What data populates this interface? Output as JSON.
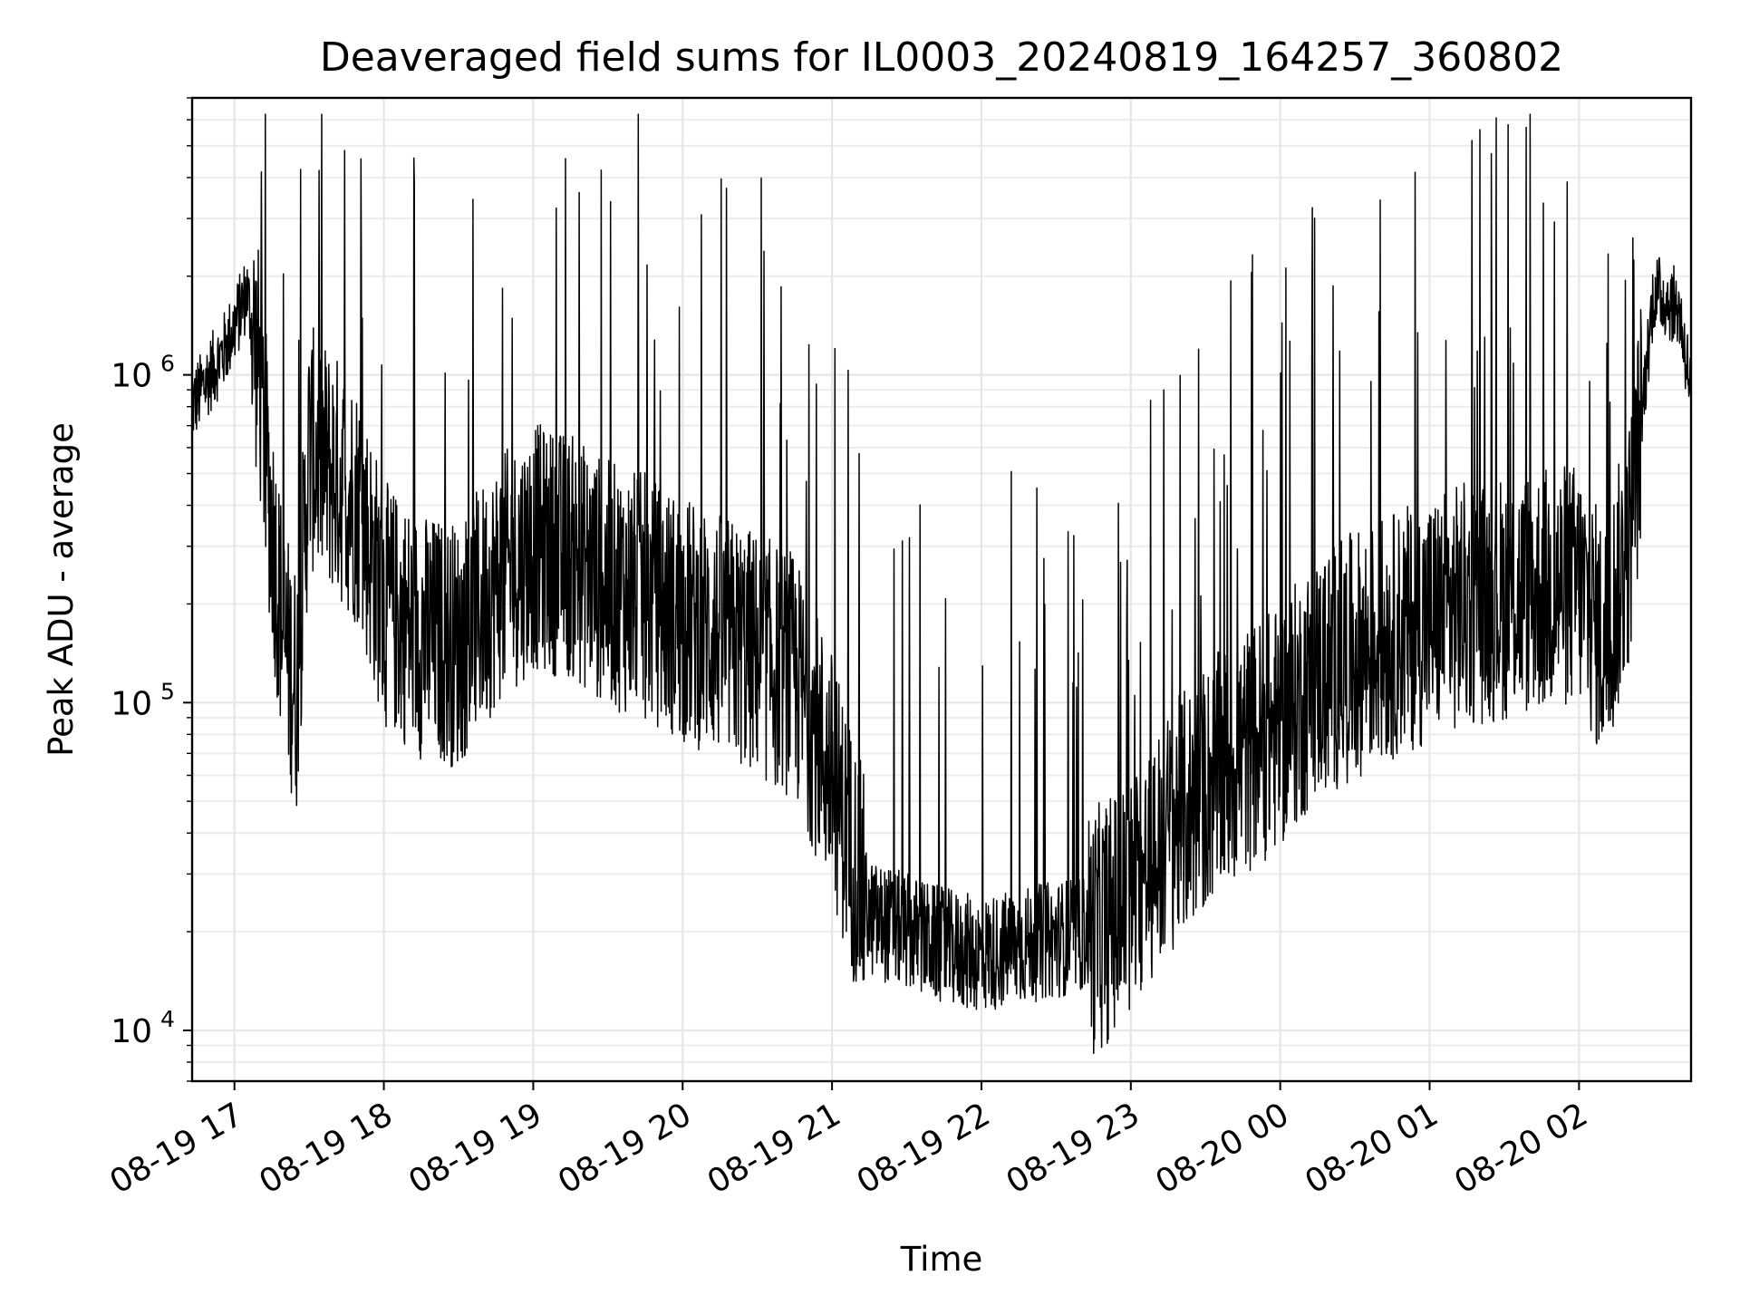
{
  "chart_data": {
    "type": "line",
    "title": "Deaveraged field sums for IL0003_20240819_164257_360802",
    "xlabel": "Time",
    "ylabel": "Peak ADU - average",
    "yscale": "log",
    "ylim": [
      7000,
      7000000
    ],
    "xlim": [
      "2024-08-19 16:43",
      "2024-08-20 02:45"
    ],
    "grid": true,
    "x_tick_labels": [
      "08-19 17",
      "08-19 18",
      "08-19 19",
      "08-19 20",
      "08-19 21",
      "08-19 22",
      "08-19 23",
      "08-20 00",
      "08-20 01",
      "08-20 02"
    ],
    "x_ticks": [
      "2024-08-19 17:00",
      "2024-08-19 18:00",
      "2024-08-19 19:00",
      "2024-08-19 20:00",
      "2024-08-19 21:00",
      "2024-08-19 22:00",
      "2024-08-19 23:00",
      "2024-08-20 00:00",
      "2024-08-20 01:00",
      "2024-08-20 02:00"
    ],
    "y_ticks": [
      {
        "base": "10",
        "exp": "4",
        "value": 10000
      },
      {
        "base": "10",
        "exp": "5",
        "value": 100000
      },
      {
        "base": "10",
        "exp": "6",
        "value": 1000000
      }
    ],
    "series": [
      {
        "color": "#000000",
        "x": [
          "2024-08-19 16:43",
          "2024-08-19 16:50",
          "2024-08-19 16:55",
          "2024-08-19 17:00",
          "2024-08-19 17:05",
          "2024-08-19 17:10",
          "2024-08-19 17:15",
          "2024-08-19 17:20",
          "2024-08-19 17:25",
          "2024-08-19 17:30",
          "2024-08-19 17:40",
          "2024-08-19 17:50",
          "2024-08-19 18:00",
          "2024-08-19 18:15",
          "2024-08-19 18:30",
          "2024-08-19 18:45",
          "2024-08-19 19:00",
          "2024-08-19 19:15",
          "2024-08-19 19:30",
          "2024-08-19 19:45",
          "2024-08-19 20:00",
          "2024-08-19 20:15",
          "2024-08-19 20:30",
          "2024-08-19 20:45",
          "2024-08-19 21:00",
          "2024-08-19 21:15",
          "2024-08-19 21:30",
          "2024-08-19 21:45",
          "2024-08-19 22:00",
          "2024-08-19 22:15",
          "2024-08-19 22:30",
          "2024-08-19 22:45",
          "2024-08-19 23:00",
          "2024-08-19 23:15",
          "2024-08-19 23:30",
          "2024-08-19 23:45",
          "2024-08-20 00:00",
          "2024-08-20 00:15",
          "2024-08-20 00:30",
          "2024-08-20 00:45",
          "2024-08-20 01:00",
          "2024-08-20 01:15",
          "2024-08-20 01:30",
          "2024-08-20 01:45",
          "2024-08-20 02:00",
          "2024-08-20 02:10",
          "2024-08-20 02:20",
          "2024-08-20 02:30",
          "2024-08-20 02:40",
          "2024-08-20 02:45"
        ],
        "y": [
          800000,
          1000000,
          1150000,
          1400000,
          1800000,
          1000000,
          350000,
          150000,
          110000,
          600000,
          500000,
          400000,
          200000,
          160000,
          150000,
          230000,
          300000,
          280000,
          230000,
          210000,
          180000,
          160000,
          140000,
          120000,
          60000,
          22000,
          20000,
          18000,
          17000,
          18000,
          19000,
          20000,
          25000,
          40000,
          55000,
          70000,
          85000,
          120000,
          140000,
          160000,
          180000,
          200000,
          210000,
          220000,
          230000,
          150000,
          300000,
          1800000,
          1600000,
          900000
        ]
      }
    ]
  }
}
